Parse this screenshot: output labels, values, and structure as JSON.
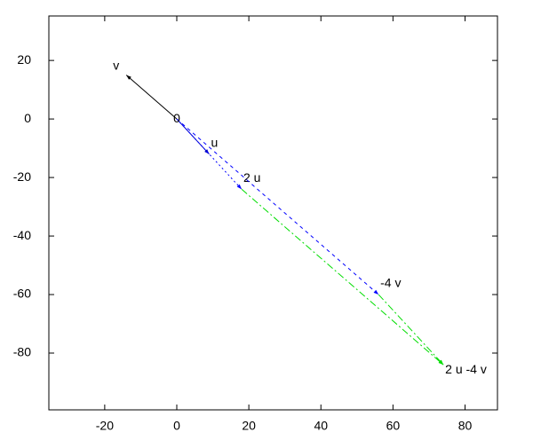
{
  "chart_data": {
    "type": "vector",
    "xlim": [
      -35.5,
      89
    ],
    "ylim": [
      -99.4,
      35.2
    ],
    "xticks": [
      -20,
      0,
      20,
      40,
      60,
      80
    ],
    "yticks": [
      -80,
      -60,
      -40,
      -20,
      0,
      20
    ],
    "origin_label": "0",
    "series": [
      {
        "name": "v",
        "color": "#000000",
        "dash": "solid",
        "x": [
          0,
          -14
        ],
        "y": [
          0,
          15
        ]
      },
      {
        "name": "u",
        "color": "#0000cc",
        "dash": "solid",
        "x": [
          0,
          9
        ],
        "y": [
          0,
          -12
        ]
      },
      {
        "name": "2 u",
        "color": "#0000ff",
        "dash": "dotted",
        "x": [
          0,
          18
        ],
        "y": [
          0,
          -24
        ]
      },
      {
        "name": "-4 v",
        "color": "#0000ff",
        "dash": "dashed",
        "x": [
          0,
          56
        ],
        "y": [
          0,
          -60
        ]
      },
      {
        "name": "2 u -4 v",
        "color": "#00dd00",
        "dash": "dashdot",
        "x": [
          18,
          74
        ],
        "y": [
          -24,
          -84
        ]
      },
      {
        "color": "#00dd00",
        "dash": "dashdot",
        "x": [
          56,
          74
        ],
        "y": [
          -60,
          -84
        ]
      }
    ]
  }
}
